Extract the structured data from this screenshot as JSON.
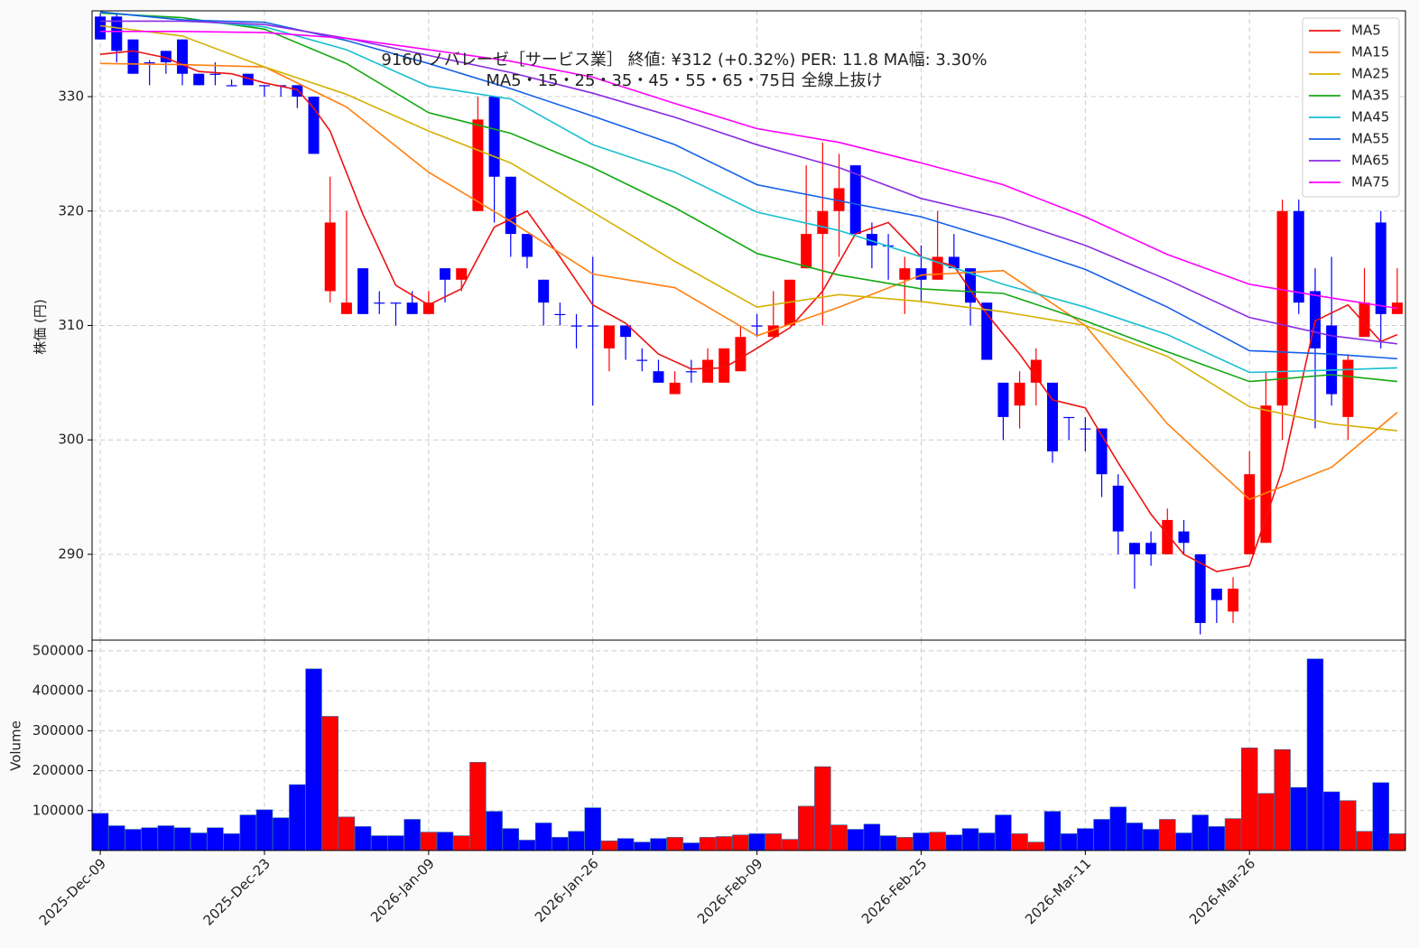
{
  "chart_data": [
    {
      "type": "candlestick",
      "title": "9160  ノバレーゼ［サービス業］ 終値: ¥312 (+0.32%)  PER: 11.8  MA幅: 3.30%",
      "subtitle": "MA5・15・25・35・45・55・65・75日 全線上抜け",
      "ylabel": "株価 (円)",
      "up_color": "#ff0000",
      "down_color": "#0000ff",
      "xlim": [
        -0.5,
        79.5
      ],
      "ylim": [
        282.5,
        337.5
      ],
      "yticks": [
        290,
        300,
        310,
        320,
        330
      ],
      "grid": true,
      "legend": "upper right",
      "open": [
        337,
        337,
        335,
        333,
        334,
        335,
        332,
        332,
        331,
        332,
        331,
        331,
        331,
        330,
        313,
        311,
        315,
        312,
        312,
        312,
        311,
        315,
        314,
        320,
        330,
        323,
        318,
        314,
        311,
        310,
        310,
        308,
        310,
        307,
        306,
        304,
        306,
        305,
        305,
        306,
        310,
        309,
        310,
        315,
        318,
        320,
        324,
        318,
        317,
        314,
        315,
        314,
        316,
        315,
        312,
        305,
        303,
        305,
        305,
        302,
        301,
        301,
        296,
        291,
        291,
        290,
        292,
        290,
        287,
        285,
        290,
        291,
        303,
        320,
        313,
        310,
        302,
        309,
        319,
        311
      ],
      "high": [
        337.3,
        337.3,
        335,
        333.2,
        334,
        335,
        332,
        333,
        331.5,
        332,
        331,
        331,
        331,
        330,
        323,
        320,
        315,
        313,
        312,
        313,
        313,
        315,
        315,
        330,
        330,
        323,
        318,
        314,
        312,
        311,
        316,
        310,
        310,
        308,
        307,
        306,
        307,
        308,
        308,
        310,
        311,
        313,
        314,
        324,
        326,
        325,
        324,
        319,
        318,
        316,
        317,
        320,
        318,
        315,
        312,
        305,
        306,
        308,
        305,
        302,
        302,
        301,
        297,
        291,
        292,
        294,
        293,
        290,
        287,
        288,
        299,
        306,
        321,
        321,
        315,
        316,
        307.5,
        315,
        320,
        315
      ],
      "low": [
        335,
        333,
        332,
        331,
        332,
        331,
        331,
        331,
        331,
        331,
        330,
        330,
        329,
        325,
        312,
        311,
        311,
        311,
        310,
        311,
        311,
        312,
        313,
        320,
        319,
        316,
        315,
        310,
        310,
        308,
        303,
        306,
        307,
        306,
        305,
        304,
        305,
        305,
        305,
        306,
        309,
        309,
        310,
        315,
        310,
        316,
        318,
        315,
        314,
        311,
        312,
        314,
        315,
        310,
        307,
        300,
        301,
        303,
        298,
        300,
        299,
        295,
        290,
        287,
        289,
        290,
        290,
        283,
        284,
        284,
        290,
        291,
        300,
        311,
        301,
        303,
        300,
        309,
        308,
        311
      ],
      "close": [
        335,
        334,
        332,
        333,
        333,
        332,
        331,
        332,
        331,
        331,
        331,
        331,
        330,
        325,
        319,
        312,
        311,
        312,
        312,
        311,
        312,
        314,
        315,
        328,
        323,
        318,
        316,
        312,
        311,
        310,
        310,
        310,
        309,
        307,
        305,
        305,
        306,
        307,
        308,
        309,
        310,
        310,
        314,
        318,
        320,
        322,
        318,
        317,
        317,
        315,
        314,
        316,
        315,
        312,
        307,
        302,
        305,
        307,
        299,
        302,
        301,
        297,
        292,
        290,
        290,
        293,
        291,
        284,
        286,
        287,
        297,
        303,
        320,
        312,
        308,
        304,
        307,
        312,
        311,
        312
      ],
      "series": [
        {
          "name": "MA5",
          "color": "#ee1111",
          "x": [
            0,
            2,
            4,
            6,
            8,
            10,
            12,
            13,
            14,
            16,
            18,
            20,
            22,
            24,
            26,
            28,
            30,
            32,
            34,
            36,
            38,
            40,
            42,
            44,
            46,
            48,
            50,
            52,
            54,
            56,
            58,
            60,
            62,
            64,
            66,
            68,
            70,
            72,
            74,
            76,
            78,
            79
          ],
          "values": [
            333.7,
            334.0,
            333.4,
            332.2,
            332.0,
            331.2,
            330.6,
            329.0,
            327.0,
            319.7,
            313.5,
            311.8,
            313.2,
            318.6,
            320.0,
            316.0,
            311.8,
            310.2,
            307.5,
            306.2,
            306.3,
            308.0,
            309.8,
            313.0,
            318.0,
            319.0,
            316.0,
            315.2,
            311.0,
            307.5,
            303.5,
            302.8,
            298.0,
            293.5,
            290.0,
            288.5,
            289.0,
            297.4,
            310.4,
            311.8,
            308.6,
            309.2
          ]
        },
        {
          "name": "MA15",
          "color": "#ff7f0e",
          "x": [
            0,
            5,
            10,
            15,
            20,
            25,
            30,
            35,
            40,
            45,
            50,
            55,
            60,
            65,
            70,
            75,
            79
          ],
          "values": [
            332.9,
            332.8,
            332.6,
            329.1,
            323.4,
            319.1,
            314.5,
            313.3,
            309.1,
            311.6,
            314.4,
            314.8,
            310.0,
            301.4,
            294.8,
            297.6,
            302.4
          ]
        },
        {
          "name": "MA25",
          "color": "#d4b000",
          "x": [
            0,
            5,
            10,
            15,
            20,
            25,
            30,
            35,
            40,
            45,
            50,
            55,
            60,
            65,
            70,
            75,
            79
          ],
          "values": [
            336.2,
            335.3,
            332.6,
            330.2,
            327.0,
            324.2,
            319.9,
            315.6,
            311.6,
            312.7,
            312.1,
            311.2,
            310.0,
            307.3,
            302.9,
            301.4,
            300.8
          ]
        },
        {
          "name": "MA35",
          "color": "#13a813",
          "x": [
            0,
            5,
            10,
            15,
            20,
            25,
            30,
            35,
            40,
            45,
            50,
            55,
            60,
            65,
            70,
            75,
            79
          ],
          "values": [
            337.3,
            336.9,
            335.9,
            332.9,
            328.6,
            326.8,
            323.8,
            320.3,
            316.3,
            314.4,
            313.2,
            312.8,
            310.4,
            307.7,
            305.1,
            305.7,
            305.1
          ]
        },
        {
          "name": "MA45",
          "color": "#17becf",
          "x": [
            0,
            5,
            10,
            15,
            20,
            25,
            30,
            35,
            40,
            45,
            50,
            55,
            60,
            65,
            70,
            75,
            79
          ],
          "values": [
            337.4,
            336.7,
            336.1,
            334.1,
            330.9,
            329.8,
            325.8,
            323.4,
            319.9,
            318.3,
            316.0,
            313.6,
            311.6,
            309.2,
            305.9,
            306.1,
            306.3
          ]
        },
        {
          "name": "MA55",
          "color": "#1560e8",
          "x": [
            0,
            5,
            10,
            15,
            20,
            25,
            30,
            35,
            40,
            45,
            50,
            55,
            60,
            65,
            70,
            75,
            79
          ],
          "values": [
            337.4,
            336.7,
            336.5,
            334.9,
            332.9,
            330.7,
            328.3,
            325.8,
            322.3,
            320.9,
            319.5,
            317.3,
            314.9,
            311.6,
            307.8,
            307.5,
            307.1
          ]
        },
        {
          "name": "MA65",
          "color": "#8a2be2",
          "x": [
            0,
            5,
            10,
            15,
            20,
            25,
            30,
            35,
            40,
            45,
            50,
            55,
            60,
            65,
            70,
            75,
            79
          ],
          "values": [
            336.6,
            336.6,
            336.3,
            335.1,
            333.6,
            332.1,
            330.3,
            328.2,
            325.8,
            323.8,
            321.1,
            319.4,
            317.0,
            314.0,
            310.7,
            309.1,
            308.4
          ]
        },
        {
          "name": "MA75",
          "color": "#ff00ff",
          "x": [
            0,
            5,
            10,
            15,
            20,
            25,
            30,
            35,
            40,
            45,
            50,
            55,
            60,
            65,
            70,
            75,
            79
          ],
          "values": [
            335.7,
            335.7,
            335.6,
            335.1,
            334.1,
            333.1,
            331.7,
            329.4,
            327.2,
            326.0,
            324.2,
            322.3,
            319.5,
            316.2,
            313.6,
            312.4,
            311.5
          ]
        }
      ]
    },
    {
      "type": "bar",
      "ylabel": "Volume",
      "categories": [
        "2025-Dec-09",
        null,
        null,
        null,
        null,
        null,
        null,
        null,
        null,
        null,
        "2025-Dec-23",
        null,
        null,
        null,
        null,
        null,
        null,
        null,
        null,
        null,
        "2026-Jan-09",
        null,
        null,
        null,
        null,
        null,
        null,
        null,
        null,
        null,
        "2026-Jan-26",
        null,
        null,
        null,
        null,
        null,
        null,
        null,
        null,
        null,
        "2026-Feb-09",
        null,
        null,
        null,
        null,
        null,
        null,
        null,
        null,
        null,
        "2026-Feb-25",
        null,
        null,
        null,
        null,
        null,
        null,
        null,
        null,
        null,
        "2026-Mar-11",
        null,
        null,
        null,
        null,
        null,
        null,
        null,
        null,
        null,
        "2026-Mar-26",
        null,
        null,
        null,
        null,
        null,
        null,
        null,
        null,
        null
      ],
      "values": [
        93000,
        62000,
        53000,
        57000,
        62000,
        57000,
        44000,
        57000,
        42000,
        89000,
        102000,
        82000,
        165000,
        455000,
        336000,
        84000,
        60000,
        37000,
        37000,
        78000,
        46000,
        46000,
        37000,
        221000,
        98000,
        55000,
        26000,
        69000,
        33000,
        48000,
        107000,
        24000,
        30000,
        21000,
        30000,
        33000,
        19000,
        33000,
        35000,
        39000,
        42000,
        42000,
        28000,
        111000,
        210000,
        64000,
        53000,
        66000,
        37000,
        33000,
        44000,
        46000,
        39000,
        55000,
        44000,
        89000,
        42000,
        21000,
        98000,
        42000,
        55000,
        78000,
        109000,
        69000,
        53000,
        78000,
        44000,
        89000,
        60000,
        80000,
        257000,
        143000,
        253000,
        158000,
        480000,
        147000,
        125000,
        48000,
        170000,
        42000
      ],
      "xlim": [
        -0.5,
        79.5
      ],
      "ylim": [
        0,
        527000
      ],
      "yticks": [
        100000,
        200000,
        300000,
        400000,
        500000
      ],
      "grid": true
    }
  ]
}
